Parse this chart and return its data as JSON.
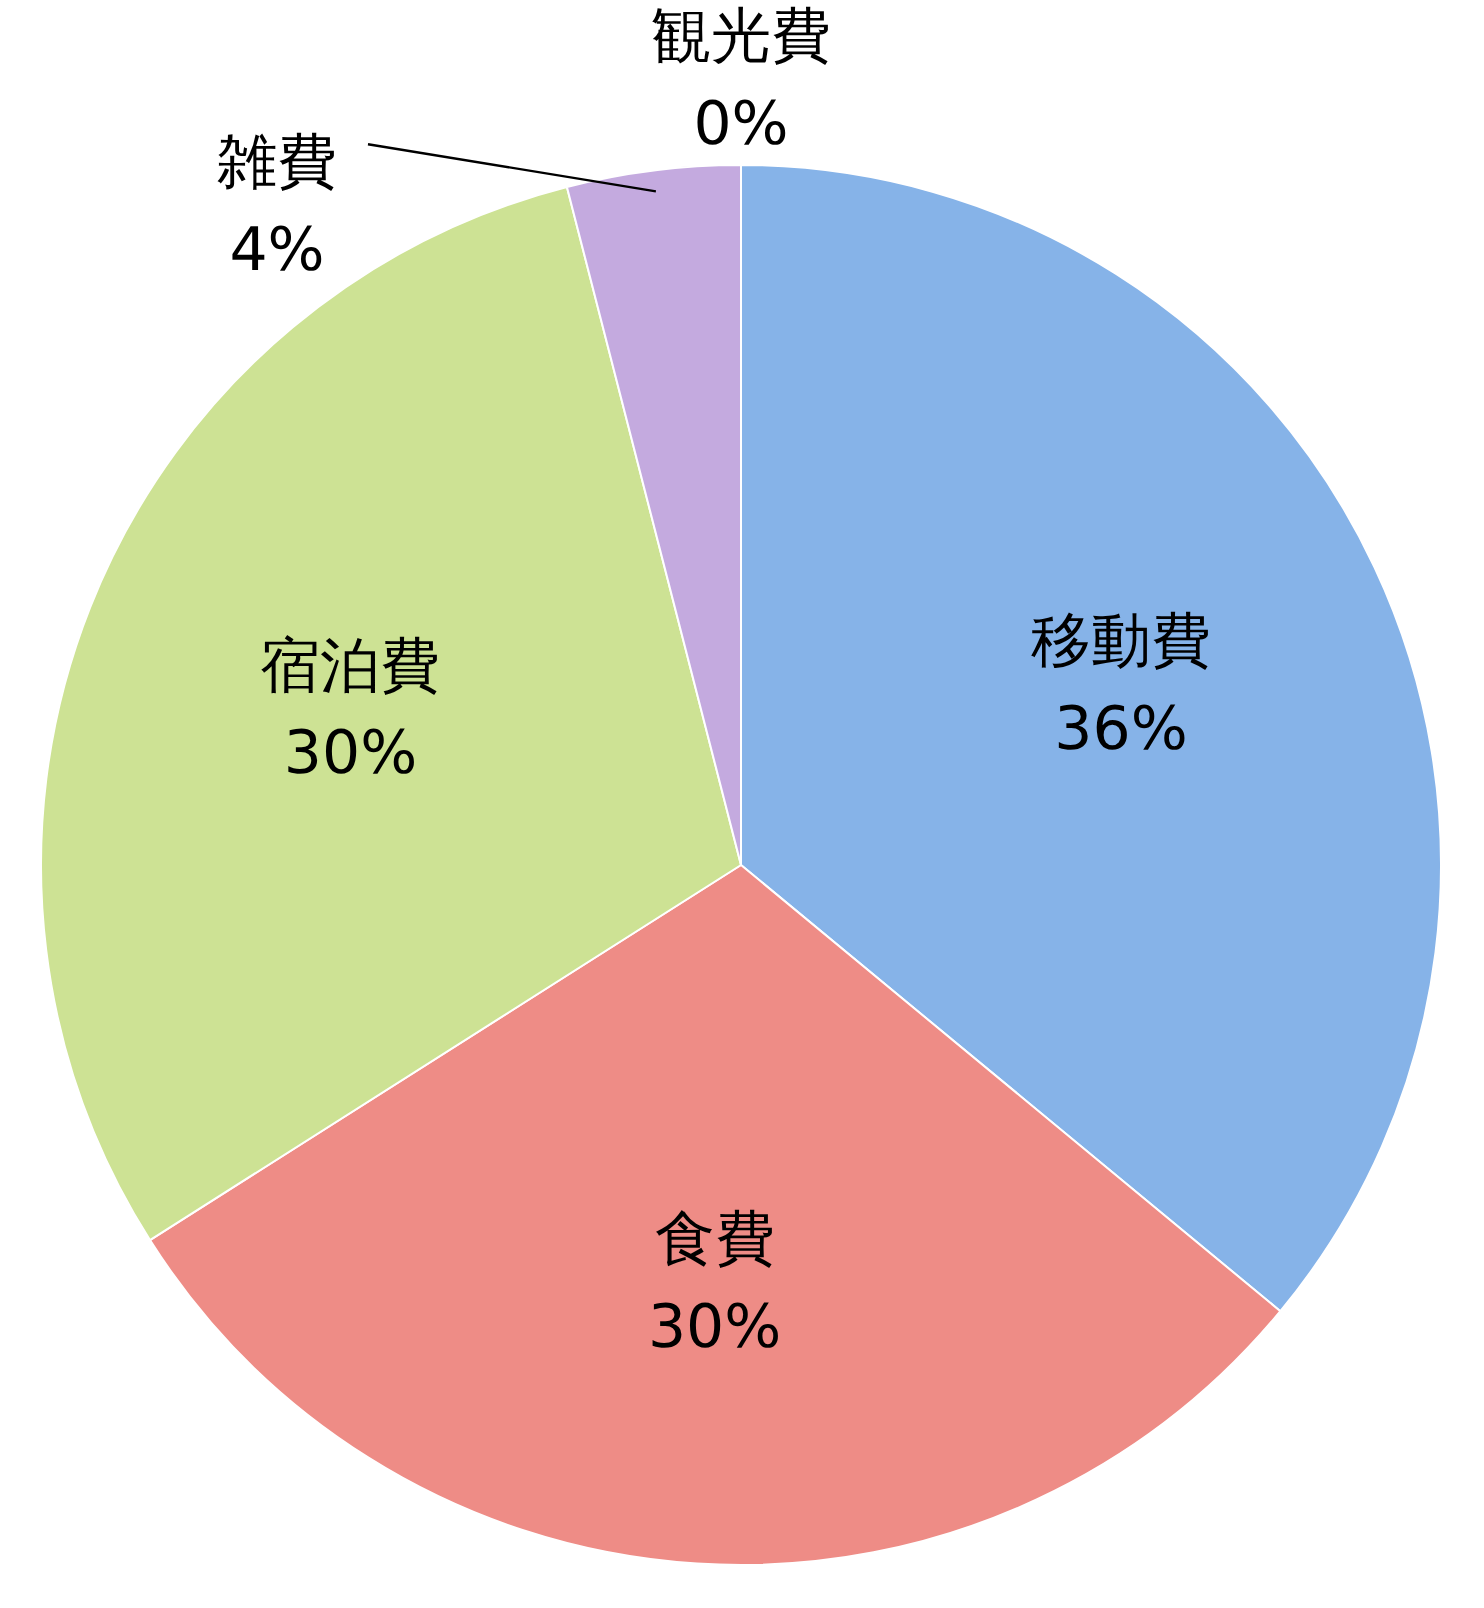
{
  "chart_data": {
    "type": "pie",
    "categories": [
      "移動費",
      "食費",
      "宿泊費",
      "雑費",
      "観光費"
    ],
    "values": [
      36,
      30,
      30,
      4,
      0
    ],
    "value_labels": [
      "36%",
      "30%",
      "30%",
      "4%",
      "0%"
    ],
    "colors": [
      "#86b3e8",
      "#ee8c86",
      "#cde294",
      "#c4aadf",
      "#a88fd0"
    ]
  }
}
